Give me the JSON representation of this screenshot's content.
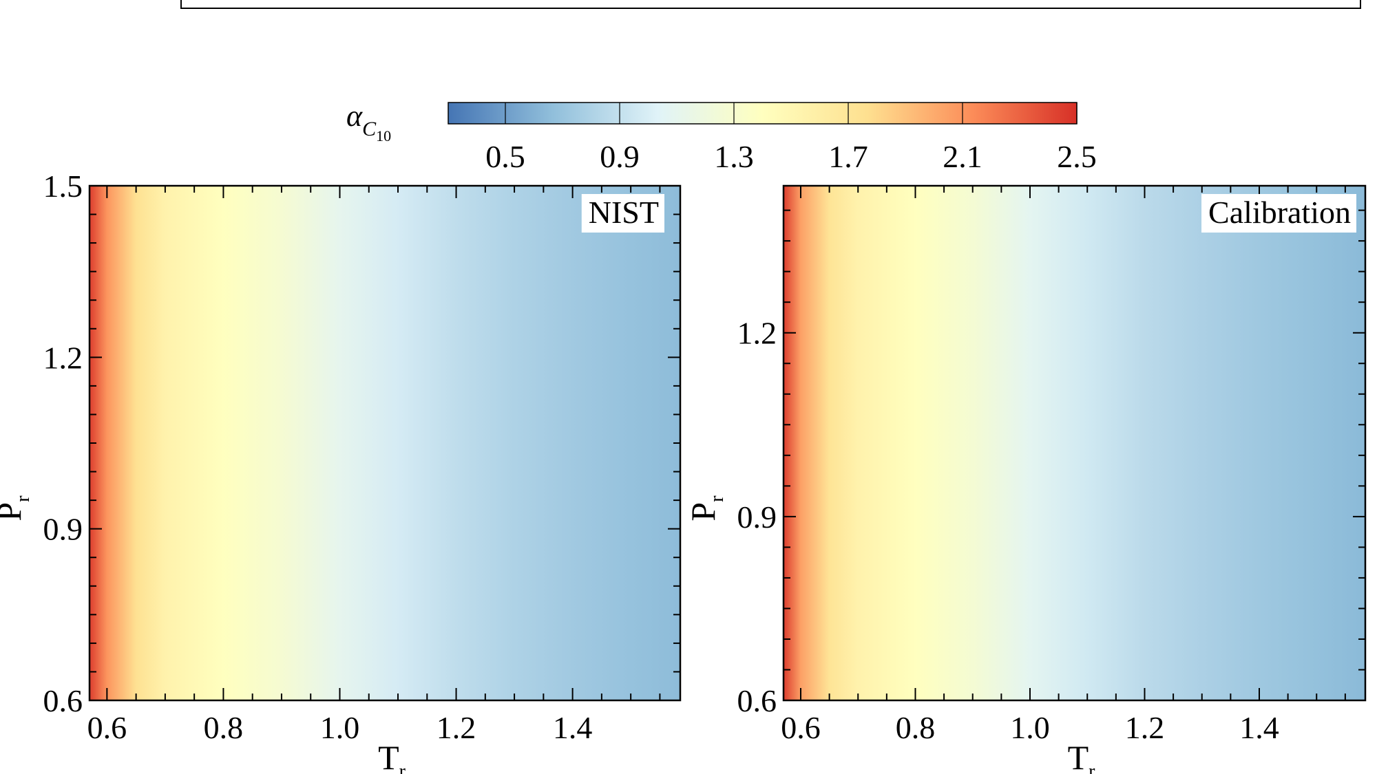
{
  "chart_data": [
    {
      "type": "heatmap",
      "panel_label": "NIST",
      "xlabel": "T",
      "xlabel_sub": "r",
      "ylabel": "P",
      "ylabel_sub": "r",
      "xlim": [
        0.57,
        1.585
      ],
      "ylim": [
        0.6,
        1.5
      ],
      "xticks": [
        "0.6",
        "0.8",
        "1.0",
        "1.2",
        "1.4"
      ],
      "yticks": [
        "0.6",
        "0.9",
        "1.2",
        "1.5"
      ],
      "field_profile_x": [
        0.57,
        0.6,
        0.65,
        0.7,
        0.8,
        0.9,
        1.0,
        1.1,
        1.2,
        1.3,
        1.4,
        1.5,
        1.585
      ],
      "field_profile_value": [
        2.45,
        2.1,
        1.75,
        1.55,
        1.4,
        1.28,
        1.1,
        0.98,
        0.88,
        0.8,
        0.74,
        0.69,
        0.65
      ]
    },
    {
      "type": "heatmap",
      "panel_label": "Calibration",
      "xlabel": "T",
      "xlabel_sub": "r",
      "ylabel": "P",
      "ylabel_sub": "r",
      "xlim": [
        0.57,
        1.585
      ],
      "ylim": [
        0.6,
        1.44
      ],
      "xticks": [
        "0.6",
        "0.8",
        "1.0",
        "1.2",
        "1.4"
      ],
      "yticks": [
        "0.6",
        "0.9",
        "1.2"
      ],
      "field_profile_x": [
        0.57,
        0.6,
        0.65,
        0.7,
        0.8,
        0.9,
        1.0,
        1.1,
        1.2,
        1.3,
        1.4,
        1.5,
        1.585
      ],
      "field_profile_value": [
        2.45,
        2.05,
        1.72,
        1.55,
        1.4,
        1.27,
        1.08,
        0.96,
        0.86,
        0.79,
        0.73,
        0.68,
        0.64
      ]
    }
  ],
  "colorbar": {
    "label": "α",
    "label_sub": "C",
    "label_subsub": "10",
    "vmin": 0.3,
    "vmax": 2.5,
    "ticks": [
      "0.5",
      "0.9",
      "1.3",
      "1.7",
      "2.1",
      "2.5"
    ],
    "colors": [
      "#4575b4",
      "#91bfdb",
      "#e0f3f8",
      "#ffffbf",
      "#fee090",
      "#fc8d59",
      "#d73027"
    ]
  }
}
